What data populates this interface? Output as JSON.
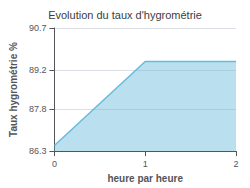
{
  "chart_data": {
    "type": "area",
    "title": "Evolution du taux d'hygrométrie",
    "xlabel": "heure par heure",
    "ylabel": "Taux hygrométrie %",
    "x": [
      0,
      1,
      2
    ],
    "values": [
      86.5,
      89.5,
      89.5
    ],
    "color": "#66bbdd",
    "xlim": [
      0,
      2
    ],
    "xticks": [
      0,
      1,
      2
    ],
    "ylim": [
      86.3,
      90.7
    ],
    "yticks": [
      86.3,
      87.8,
      89.2,
      90.7
    ],
    "grid": true
  }
}
